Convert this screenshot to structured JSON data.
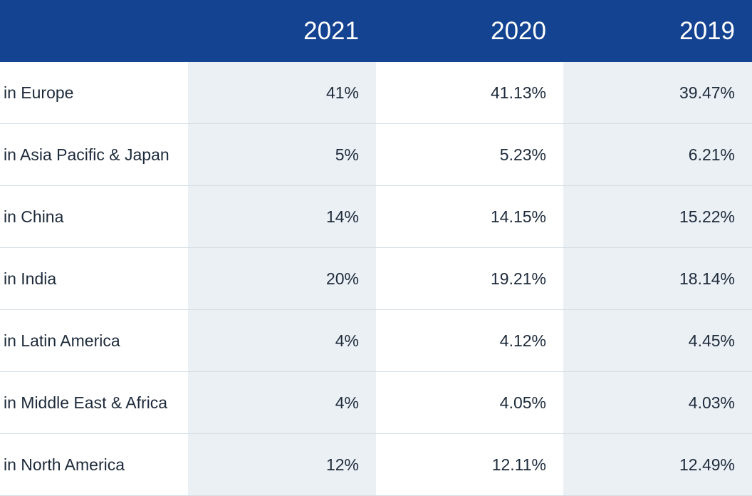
{
  "header": {
    "years": [
      "2021",
      "2020",
      "2019"
    ]
  },
  "rows": [
    {
      "label": "in Europe",
      "values": [
        "41%",
        "41.13%",
        "39.47%"
      ]
    },
    {
      "label": "in Asia Pacific & Japan",
      "values": [
        "5%",
        "5.23%",
        "6.21%"
      ]
    },
    {
      "label": "in China",
      "values": [
        "14%",
        "14.15%",
        "15.22%"
      ]
    },
    {
      "label": "in India",
      "values": [
        "20%",
        "19.21%",
        "18.14%"
      ]
    },
    {
      "label": "in Latin America",
      "values": [
        "4%",
        "4.12%",
        "4.45%"
      ]
    },
    {
      "label": "in Middle East & Africa",
      "values": [
        "4%",
        "4.05%",
        "4.03%"
      ]
    },
    {
      "label": "in North America",
      "values": [
        "12%",
        "12.11%",
        "12.49%"
      ]
    }
  ],
  "colors": {
    "header_bg": "#134391",
    "header_text": "#ffffff",
    "shaded_column": "#ebf0f5",
    "row_divider": "#d5dde5",
    "body_text": "#1d2a3a"
  }
}
